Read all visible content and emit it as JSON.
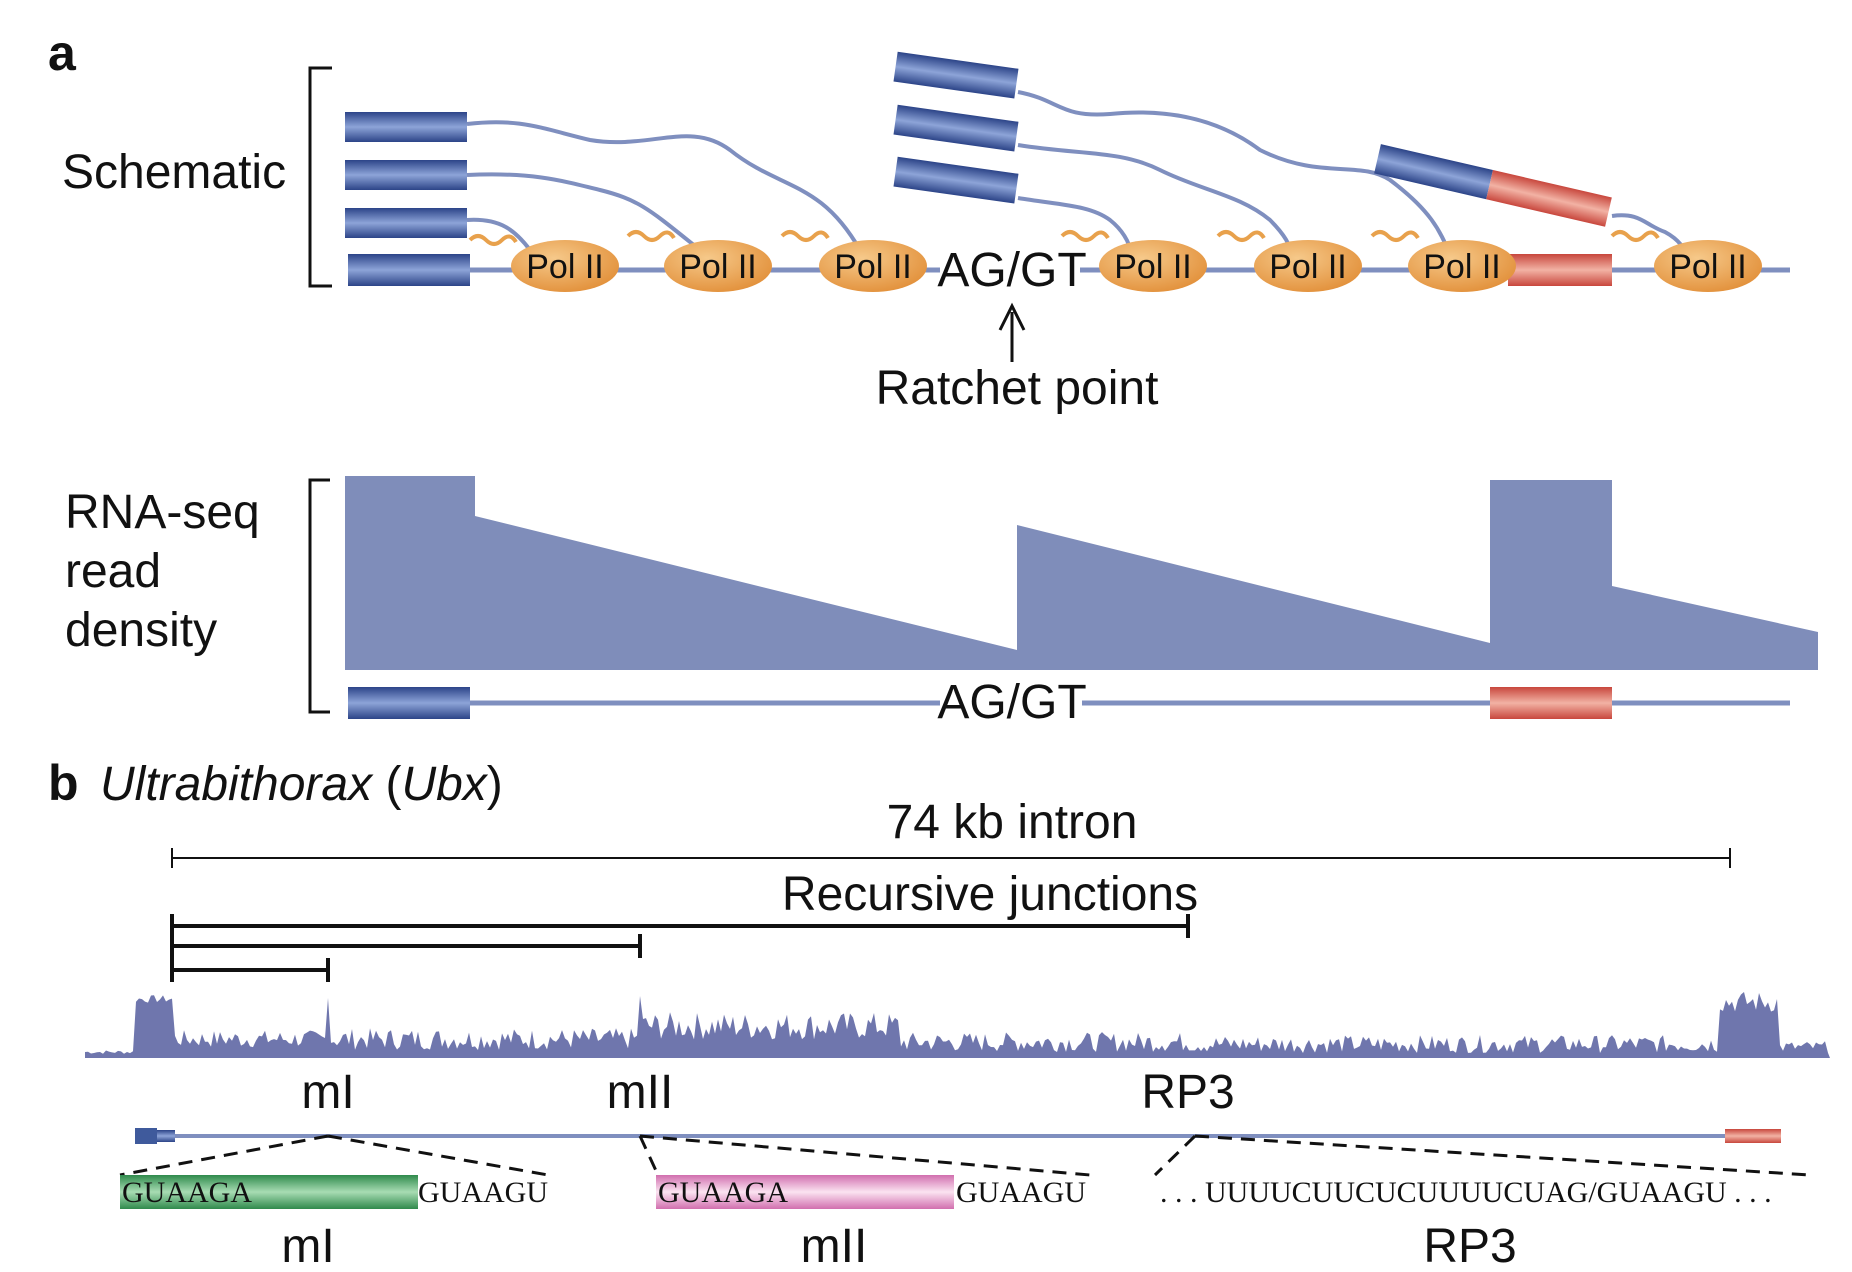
{
  "panel_a": {
    "letter": "a",
    "schematic_label": "Schematic",
    "pol_label": "Pol II",
    "splice_site": "AG/GT",
    "ratchet_label": "Ratchet point",
    "rnaseq_label_lines": [
      "RNA-seq",
      "read",
      "density"
    ],
    "splice_site_bottom": "AG/GT"
  },
  "panel_b": {
    "letter": "b",
    "gene_name": "Ultrabithorax",
    "gene_abbrev": "Ubx",
    "intron_label": "74 kb intron",
    "junctions_label": "Recursive junctions",
    "sites": [
      "mI",
      "mII",
      "RP3"
    ],
    "seq_ml_left": "GUAAGA",
    "seq_ml_right": "GUAAGU",
    "seq_mll_left": "GUAAGA",
    "seq_mll_right": "GUAAGU",
    "seq_rp3": ". . . UUUUCUUCUCUUUUCUAG/GUAAGU . . .",
    "bottom_labels": [
      "mI",
      "mII",
      "RP3"
    ]
  },
  "colors": {
    "exon_blue": "#3f5a9c",
    "exon_red": "#d65a4c",
    "intron_line": "#7f8fbf",
    "pol_orange": "#e8a14c",
    "density_fill": "#7f8dba",
    "coverage_fill": "#6f76ad",
    "green_box": "#3f9a5a",
    "pink_box": "#d97fb8"
  },
  "icons": {
    "ratchet_arrow": "up-arrow-icon"
  }
}
